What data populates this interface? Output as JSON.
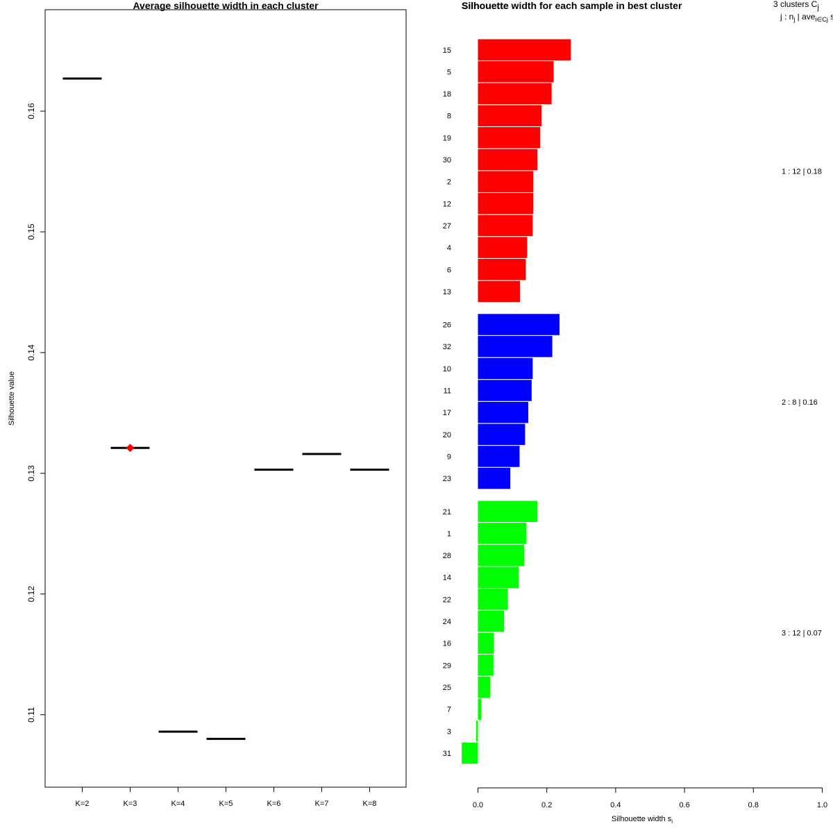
{
  "chart_data": [
    {
      "type": "scatter",
      "title": "Average silhouette width in each cluster",
      "xlabel": "",
      "ylabel": "Silhouette value",
      "categories": [
        "K=2",
        "K=3",
        "K=4",
        "K=5",
        "K=6",
        "K=7",
        "K=8"
      ],
      "values": [
        0.1627,
        0.1321,
        0.1086,
        0.108,
        0.1303,
        0.1316,
        0.1303
      ],
      "best_index": 1,
      "best_color": "#ff0000",
      "ylim": [
        0.104,
        0.1684
      ],
      "yticks": [
        0.11,
        0.12,
        0.13,
        0.14,
        0.15,
        0.16
      ],
      "ytick_labels": [
        "0.11",
        "0.12",
        "0.13",
        "0.14",
        "0.15",
        "0.16"
      ]
    },
    {
      "type": "bar",
      "orientation": "horizontal",
      "title": "Silhouette width for each sample in best cluster",
      "overlapping_title_text": "Silhouette",
      "xlabel": "Silhouette width s",
      "xlabel_sub": "i",
      "xlim": [
        0,
        1
      ],
      "xticks": [
        0,
        0.2,
        0.4,
        0.6,
        0.8,
        1
      ],
      "xtick_labels": [
        "0.0",
        "0.2",
        "0.4",
        "0.6",
        "0.8",
        "1.0"
      ],
      "legend_line1": {
        "text": "3  clusters  C",
        "sub": "j"
      },
      "legend_line2": {
        "text": "j :  n",
        "sub1": "j",
        "mid": " | ave",
        "sub2": "i∈Cj",
        "end": "  s"
      },
      "clusters": [
        {
          "label": "1 :  12  |  0.18",
          "color": "#ff0000",
          "samples": [
            "15",
            "5",
            "18",
            "8",
            "19",
            "30",
            "2",
            "12",
            "27",
            "4",
            "6",
            "13"
          ],
          "values": [
            0.27,
            0.22,
            0.214,
            0.185,
            0.181,
            0.173,
            0.161,
            0.161,
            0.159,
            0.143,
            0.139,
            0.122
          ]
        },
        {
          "label": "2 :  8  |  0.16",
          "color": "#0000ff",
          "samples": [
            "26",
            "32",
            "10",
            "11",
            "17",
            "20",
            "9",
            "23"
          ],
          "values": [
            0.237,
            0.216,
            0.159,
            0.156,
            0.146,
            0.137,
            0.121,
            0.094
          ]
        },
        {
          "label": "3 :  12  |  0.07",
          "color": "#00ff00",
          "samples": [
            "21",
            "1",
            "28",
            "14",
            "22",
            "24",
            "16",
            "29",
            "25",
            "7",
            "3",
            "31"
          ],
          "values": [
            0.173,
            0.141,
            0.134,
            0.118,
            0.087,
            0.076,
            0.046,
            0.045,
            0.036,
            0.01,
            -0.005,
            -0.047
          ]
        }
      ]
    }
  ]
}
